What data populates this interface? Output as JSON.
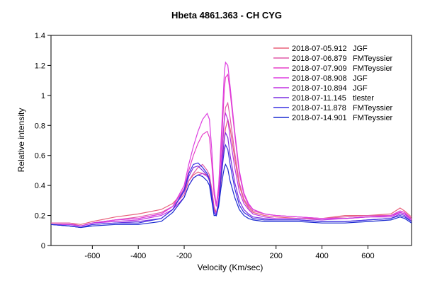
{
  "chart_data": {
    "type": "line",
    "title": "Hbeta 4861.363 - CH CYG",
    "xlabel": "Velocity (Km/sec)",
    "ylabel": "Relative intensity",
    "xlim": [
      -780,
      790
    ],
    "ylim": [
      0,
      1.4
    ],
    "xticks": [
      -600,
      -400,
      -200,
      200,
      400,
      600
    ],
    "yticks": [
      0,
      0.2,
      0.4,
      0.6,
      0.8,
      1,
      1.2,
      1.4
    ],
    "ytick_labels": [
      "0",
      "0.2",
      "0.4",
      "0.6",
      "0.8",
      "1",
      "1.2",
      "1.4"
    ],
    "legend_position": "top-right",
    "series": [
      {
        "date": "2018-07-05.912",
        "observer": "JGF",
        "color": "#e8607a",
        "x": [
          -780,
          -700,
          -650,
          -600,
          -500,
          -400,
          -300,
          -250,
          -200,
          -180,
          -160,
          -140,
          -120,
          -100,
          -90,
          -80,
          -70,
          -60,
          -50,
          -40,
          -30,
          -25,
          -20,
          -10,
          0,
          20,
          40,
          60,
          80,
          100,
          150,
          200,
          300,
          400,
          500,
          600,
          700,
          740,
          760,
          790
        ],
        "y": [
          0.15,
          0.15,
          0.14,
          0.16,
          0.19,
          0.21,
          0.24,
          0.28,
          0.36,
          0.43,
          0.47,
          0.49,
          0.48,
          0.47,
          0.46,
          0.38,
          0.26,
          0.22,
          0.28,
          0.42,
          0.6,
          0.72,
          0.78,
          0.84,
          0.78,
          0.58,
          0.4,
          0.3,
          0.25,
          0.22,
          0.2,
          0.19,
          0.18,
          0.18,
          0.2,
          0.2,
          0.21,
          0.25,
          0.23,
          0.19
        ]
      },
      {
        "date": "2018-07-06.879",
        "observer": "FMTeyssier",
        "color": "#e05aa8",
        "x": [
          -780,
          -700,
          -650,
          -600,
          -500,
          -400,
          -300,
          -250,
          -200,
          -180,
          -160,
          -140,
          -120,
          -100,
          -90,
          -80,
          -70,
          -60,
          -50,
          -40,
          -30,
          -25,
          -20,
          -10,
          0,
          20,
          40,
          60,
          80,
          100,
          150,
          200,
          300,
          400,
          500,
          600,
          700,
          740,
          760,
          790
        ],
        "y": [
          0.15,
          0.15,
          0.13,
          0.15,
          0.17,
          0.19,
          0.22,
          0.26,
          0.34,
          0.43,
          0.48,
          0.52,
          0.54,
          0.5,
          0.47,
          0.36,
          0.24,
          0.21,
          0.3,
          0.48,
          0.72,
          0.85,
          0.92,
          0.95,
          0.85,
          0.62,
          0.42,
          0.31,
          0.26,
          0.23,
          0.21,
          0.2,
          0.19,
          0.18,
          0.19,
          0.2,
          0.2,
          0.23,
          0.22,
          0.18
        ]
      },
      {
        "date": "2018-07-07.909",
        "observer": "FMTeyssier",
        "color": "#e640c8",
        "x": [
          -780,
          -700,
          -650,
          -600,
          -500,
          -400,
          -300,
          -250,
          -200,
          -180,
          -160,
          -140,
          -120,
          -100,
          -90,
          -80,
          -70,
          -60,
          -50,
          -40,
          -30,
          -25,
          -20,
          -10,
          0,
          20,
          40,
          60,
          80,
          100,
          150,
          200,
          300,
          400,
          500,
          600,
          700,
          740,
          760,
          790
        ],
        "y": [
          0.14,
          0.14,
          0.13,
          0.15,
          0.17,
          0.18,
          0.21,
          0.26,
          0.38,
          0.5,
          0.6,
          0.68,
          0.74,
          0.76,
          0.72,
          0.55,
          0.34,
          0.26,
          0.36,
          0.6,
          0.9,
          1.05,
          1.12,
          1.14,
          1.02,
          0.74,
          0.48,
          0.34,
          0.27,
          0.24,
          0.21,
          0.2,
          0.19,
          0.18,
          0.18,
          0.19,
          0.2,
          0.22,
          0.21,
          0.17
        ]
      },
      {
        "date": "2018-07-08.908",
        "observer": "JGF",
        "color": "#dd3ee0",
        "x": [
          -780,
          -700,
          -650,
          -600,
          -500,
          -400,
          -300,
          -250,
          -200,
          -180,
          -160,
          -140,
          -120,
          -100,
          -90,
          -80,
          -70,
          -60,
          -50,
          -40,
          -30,
          -25,
          -20,
          -10,
          0,
          20,
          40,
          60,
          80,
          100,
          150,
          200,
          300,
          400,
          500,
          600,
          700,
          740,
          760,
          790
        ],
        "y": [
          0.14,
          0.14,
          0.13,
          0.15,
          0.17,
          0.18,
          0.21,
          0.26,
          0.4,
          0.54,
          0.66,
          0.76,
          0.84,
          0.88,
          0.84,
          0.64,
          0.38,
          0.27,
          0.4,
          0.68,
          1.0,
          1.16,
          1.22,
          1.2,
          1.06,
          0.76,
          0.5,
          0.35,
          0.28,
          0.24,
          0.21,
          0.2,
          0.19,
          0.18,
          0.18,
          0.19,
          0.2,
          0.23,
          0.22,
          0.17
        ]
      },
      {
        "date": "2018-07-10.894",
        "observer": "JGF",
        "color": "#c030e0",
        "x": [
          -780,
          -700,
          -650,
          -600,
          -500,
          -400,
          -300,
          -250,
          -200,
          -180,
          -160,
          -140,
          -120,
          -100,
          -90,
          -80,
          -70,
          -60,
          -50,
          -40,
          -30,
          -25,
          -20,
          -10,
          0,
          20,
          40,
          60,
          80,
          100,
          150,
          200,
          300,
          400,
          500,
          600,
          700,
          740,
          760,
          790
        ],
        "y": [
          0.14,
          0.14,
          0.13,
          0.15,
          0.16,
          0.17,
          0.2,
          0.24,
          0.32,
          0.4,
          0.45,
          0.47,
          0.48,
          0.46,
          0.44,
          0.36,
          0.24,
          0.21,
          0.3,
          0.5,
          0.75,
          0.85,
          0.88,
          0.84,
          0.72,
          0.52,
          0.36,
          0.28,
          0.24,
          0.21,
          0.19,
          0.18,
          0.18,
          0.17,
          0.18,
          0.19,
          0.19,
          0.22,
          0.21,
          0.17
        ]
      },
      {
        "date": "2018-07-11.145",
        "observer": "tlester",
        "color": "#7a2ee0",
        "x": [
          -780,
          -700,
          -650,
          -600,
          -500,
          -400,
          -300,
          -250,
          -200,
          -180,
          -160,
          -140,
          -120,
          -100,
          -90,
          -80,
          -70,
          -60,
          -50,
          -40,
          -30,
          -25,
          -20,
          -10,
          0,
          20,
          40,
          60,
          80,
          100,
          150,
          200,
          300,
          400,
          500,
          600,
          700,
          740,
          760,
          790
        ],
        "y": [
          0.14,
          0.13,
          0.12,
          0.14,
          0.15,
          0.16,
          0.18,
          0.24,
          0.36,
          0.46,
          0.52,
          0.53,
          0.5,
          0.47,
          0.43,
          0.32,
          0.22,
          0.2,
          0.28,
          0.46,
          0.64,
          0.72,
          0.75,
          0.72,
          0.6,
          0.42,
          0.3,
          0.24,
          0.21,
          0.19,
          0.18,
          0.17,
          0.17,
          0.16,
          0.16,
          0.17,
          0.18,
          0.21,
          0.2,
          0.16
        ]
      },
      {
        "date": "2018-07-11.878",
        "observer": "FMTeyssier",
        "color": "#3a30e0",
        "x": [
          -780,
          -700,
          -650,
          -600,
          -500,
          -400,
          -300,
          -250,
          -200,
          -180,
          -160,
          -140,
          -120,
          -100,
          -90,
          -80,
          -70,
          -60,
          -50,
          -40,
          -30,
          -25,
          -20,
          -10,
          0,
          20,
          40,
          60,
          80,
          100,
          150,
          200,
          300,
          400,
          500,
          600,
          700,
          740,
          760,
          790
        ],
        "y": [
          0.14,
          0.13,
          0.12,
          0.14,
          0.15,
          0.15,
          0.18,
          0.24,
          0.37,
          0.48,
          0.54,
          0.55,
          0.52,
          0.48,
          0.44,
          0.33,
          0.22,
          0.2,
          0.28,
          0.44,
          0.58,
          0.64,
          0.67,
          0.64,
          0.54,
          0.38,
          0.27,
          0.22,
          0.2,
          0.18,
          0.17,
          0.17,
          0.17,
          0.16,
          0.16,
          0.17,
          0.18,
          0.2,
          0.19,
          0.16
        ]
      },
      {
        "date": "2018-07-14.901",
        "observer": "FMTeyssier",
        "color": "#1a2ad0",
        "x": [
          -780,
          -700,
          -650,
          -600,
          -500,
          -400,
          -300,
          -250,
          -200,
          -180,
          -160,
          -140,
          -120,
          -100,
          -90,
          -80,
          -70,
          -60,
          -50,
          -40,
          -30,
          -25,
          -20,
          -10,
          0,
          20,
          40,
          60,
          80,
          100,
          150,
          200,
          300,
          400,
          500,
          600,
          700,
          740,
          760,
          790
        ],
        "y": [
          0.14,
          0.13,
          0.12,
          0.13,
          0.14,
          0.14,
          0.16,
          0.22,
          0.32,
          0.4,
          0.45,
          0.47,
          0.46,
          0.43,
          0.4,
          0.3,
          0.2,
          0.2,
          0.26,
          0.38,
          0.48,
          0.52,
          0.54,
          0.51,
          0.43,
          0.32,
          0.24,
          0.2,
          0.18,
          0.17,
          0.16,
          0.16,
          0.16,
          0.15,
          0.15,
          0.16,
          0.17,
          0.19,
          0.18,
          0.15
        ]
      }
    ]
  }
}
